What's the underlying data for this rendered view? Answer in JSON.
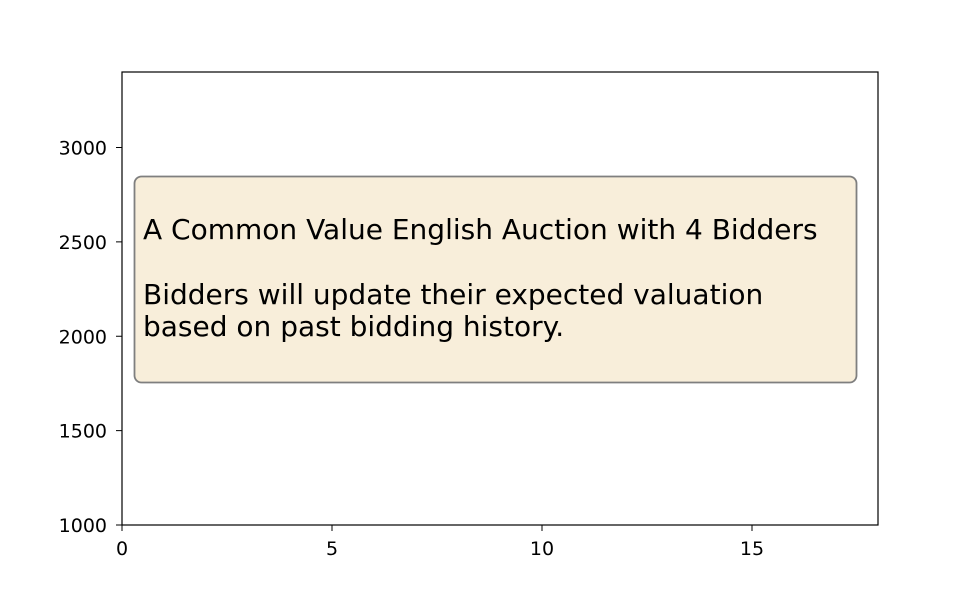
{
  "chart_data": {
    "type": "line",
    "xlim": [
      0,
      18
    ],
    "ylim": [
      1000,
      3400
    ],
    "x_ticks": [
      0,
      5,
      10,
      15
    ],
    "y_ticks": [
      1000,
      1500,
      2000,
      2500,
      3000
    ],
    "series": [],
    "grid": false,
    "annotation": {
      "title_line": "A Common Value English Auction with 4 Bidders",
      "body_lines": [
        "Bidders will update their expected valuation",
        "based on past bidding history."
      ],
      "box_fill": "#f8eeda",
      "box_edge": "#7f7f7f"
    }
  }
}
